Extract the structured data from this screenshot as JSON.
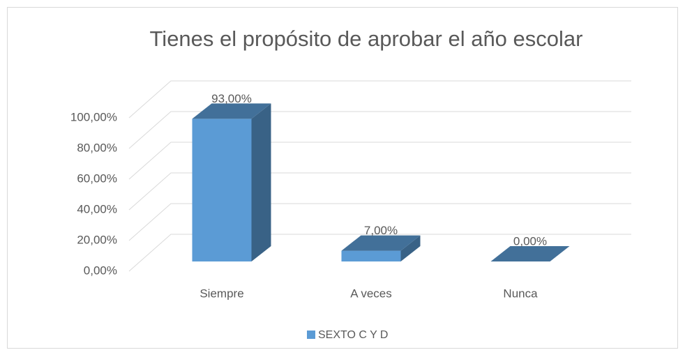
{
  "chart_data": {
    "type": "bar3d",
    "title": "Tienes el propósito de aprobar el año escolar",
    "categories": [
      "Siempre",
      "A veces",
      "Nunca"
    ],
    "series": [
      {
        "name": "SEXTO C Y D",
        "color": "#5b9bd5",
        "values": [
          93,
          7,
          0
        ],
        "value_labels": [
          "93,00%",
          "7,00%",
          "0,00%"
        ]
      }
    ],
    "ylim": [
      0,
      100
    ],
    "yticks": [
      {
        "value": 0,
        "label": "0,00%"
      },
      {
        "value": 20,
        "label": "20,00%"
      },
      {
        "value": 40,
        "label": "40,00%"
      },
      {
        "value": 60,
        "label": "60,00%"
      },
      {
        "value": 80,
        "label": "80,00%"
      },
      {
        "value": 100,
        "label": "100,00%"
      }
    ],
    "grid": true,
    "legend": "bottom"
  }
}
